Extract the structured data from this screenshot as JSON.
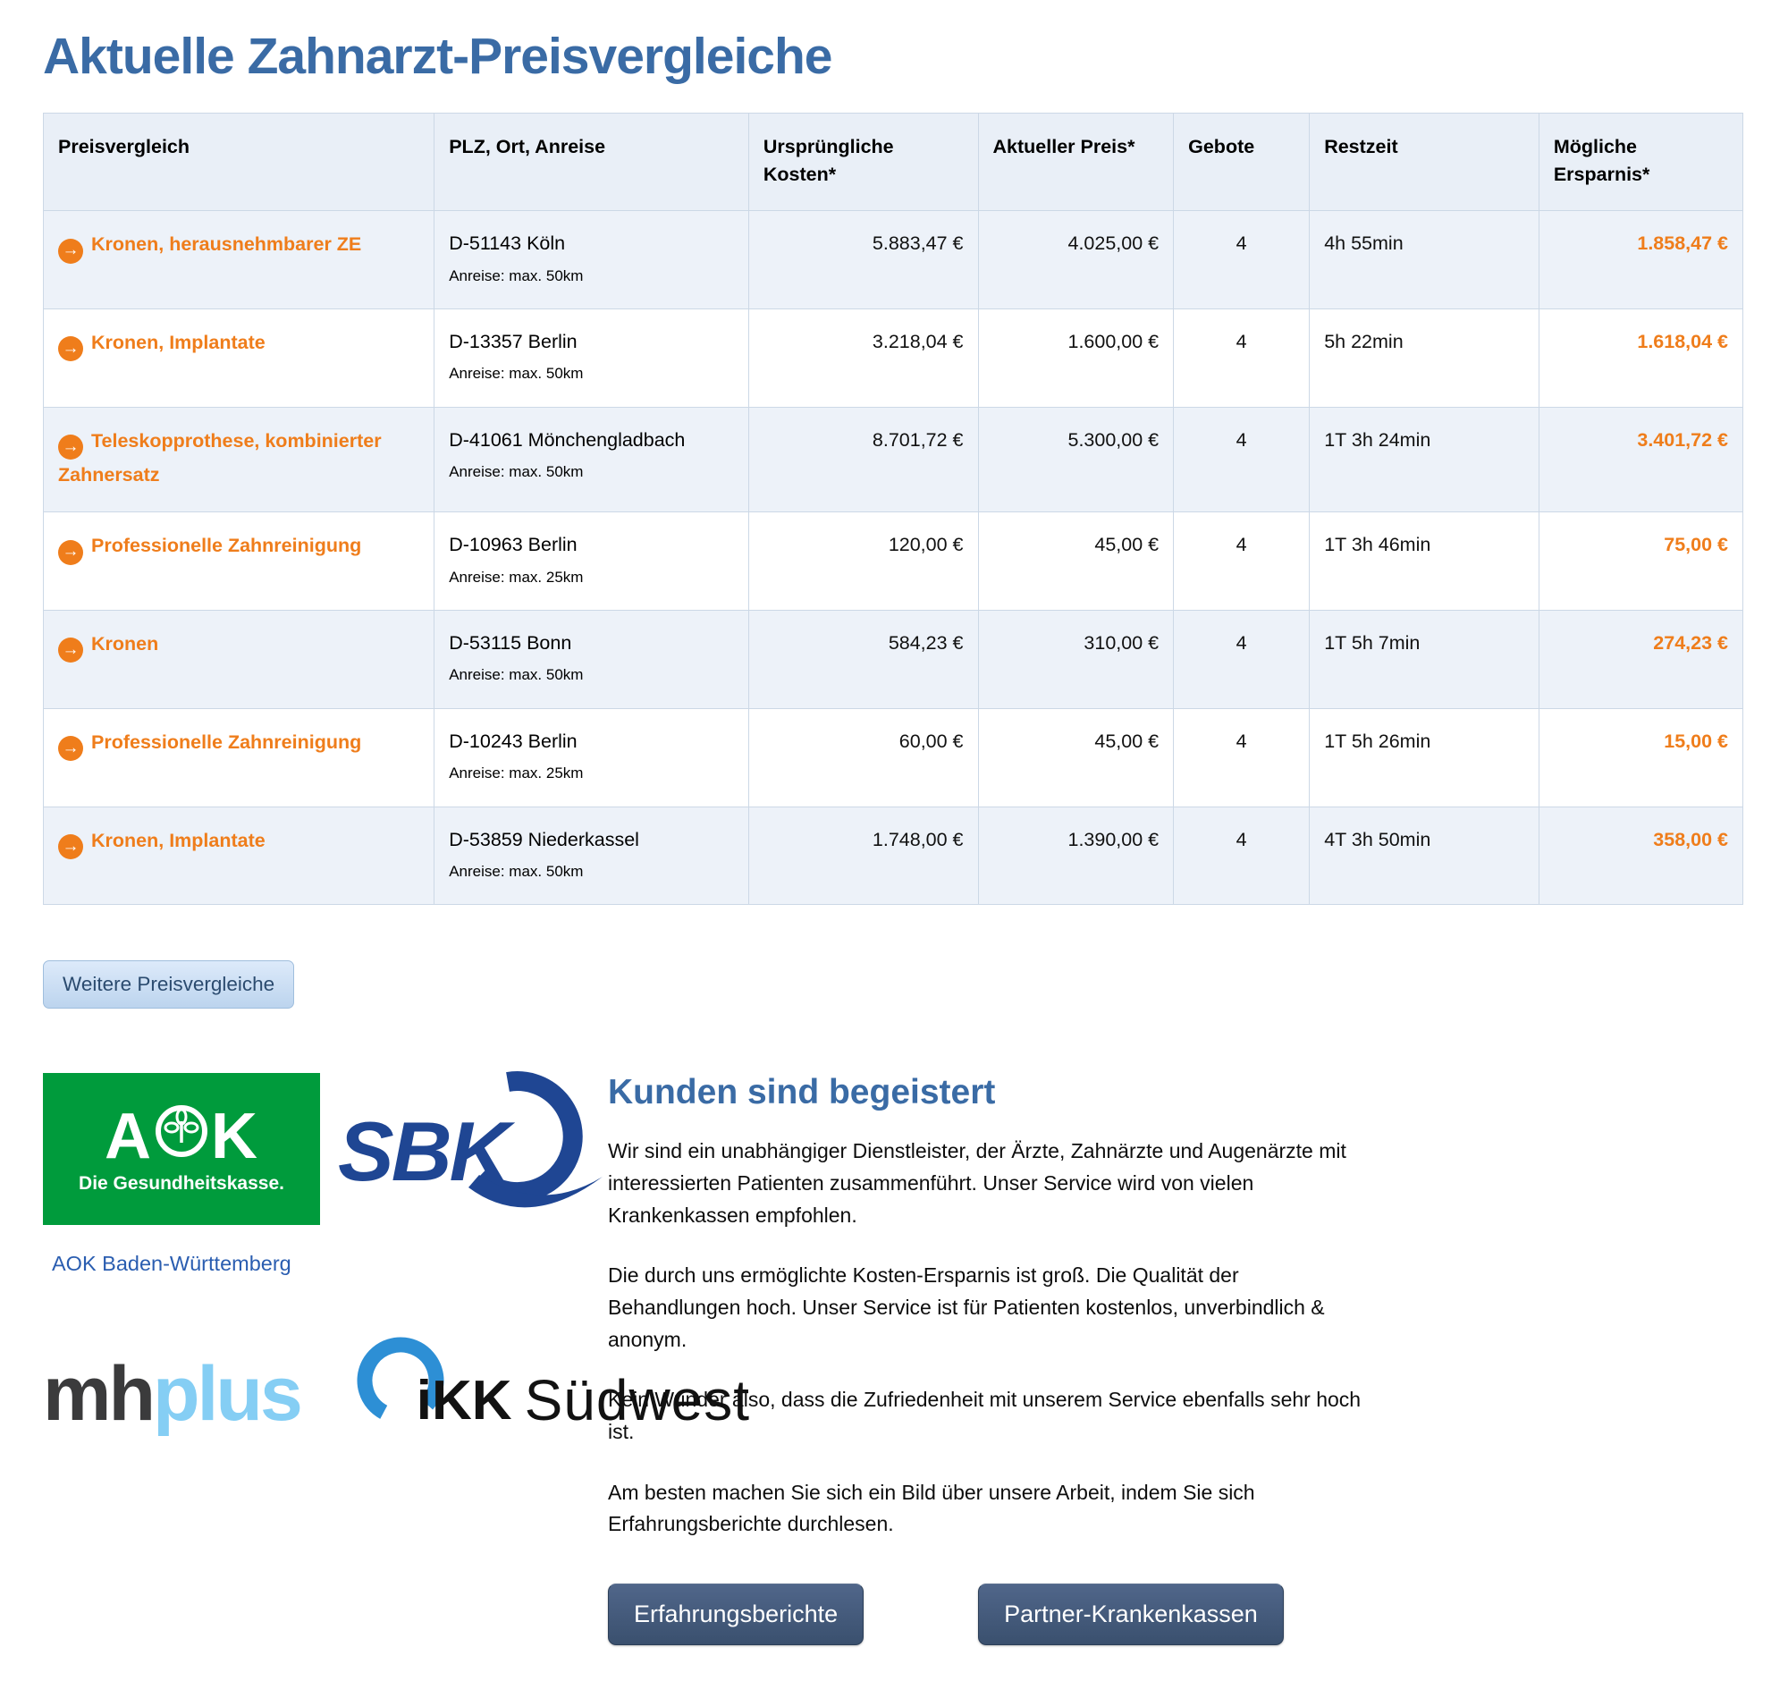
{
  "page": {
    "title": "Aktuelle Zahnarzt-Preisvergleiche"
  },
  "table": {
    "headers": [
      "Preisvergleich",
      "PLZ, Ort, Anreise",
      "Ursprüngliche Kosten*",
      "Aktueller Preis*",
      "Gebote",
      "Restzeit",
      "Mögliche Ersparnis*"
    ],
    "rows": [
      {
        "name": "Kronen, herausnehmbarer ZE",
        "location": "D-51143 Köln",
        "travel": "Anreise: max. 50km",
        "original": "5.883,47 €",
        "current": "4.025,00 €",
        "bids": "4",
        "remaining": "4h 55min",
        "savings": "1.858,47 €"
      },
      {
        "name": "Kronen, Implantate",
        "location": "D-13357 Berlin",
        "travel": "Anreise: max. 50km",
        "original": "3.218,04 €",
        "current": "1.600,00 €",
        "bids": "4",
        "remaining": "5h 22min",
        "savings": "1.618,04 €"
      },
      {
        "name": "Teleskopprothese, kombinierter Zahnersatz",
        "location": "D-41061 Mönchengladbach",
        "travel": "Anreise: max. 50km",
        "original": "8.701,72 €",
        "current": "5.300,00 €",
        "bids": "4",
        "remaining": "1T 3h 24min",
        "savings": "3.401,72 €"
      },
      {
        "name": "Professionelle Zahnreinigung",
        "location": "D-10963 Berlin",
        "travel": "Anreise: max. 25km",
        "original": "120,00 €",
        "current": "45,00 €",
        "bids": "4",
        "remaining": "1T 3h 46min",
        "savings": "75,00 €"
      },
      {
        "name": "Kronen",
        "location": "D-53115 Bonn",
        "travel": "Anreise: max. 50km",
        "original": "584,23 €",
        "current": "310,00 €",
        "bids": "4",
        "remaining": "1T 5h 7min",
        "savings": "274,23 €"
      },
      {
        "name": "Professionelle Zahnreinigung",
        "location": "D-10243 Berlin",
        "travel": "Anreise: max. 25km",
        "original": "60,00 €",
        "current": "45,00 €",
        "bids": "4",
        "remaining": "1T 5h 26min",
        "savings": "15,00 €"
      },
      {
        "name": "Kronen, Implantate",
        "location": "D-53859 Niederkassel",
        "travel": "Anreise: max. 50km",
        "original": "1.748,00 €",
        "current": "1.390,00 €",
        "bids": "4",
        "remaining": "4T 3h 50min",
        "savings": "358,00 €"
      }
    ],
    "arrow_icon": "→"
  },
  "more_button_label": "Weitere Preisvergleiche",
  "partners": {
    "aok": {
      "letter_a": "A",
      "letter_k": "K",
      "tagline": "Die Gesundheitskasse.",
      "link": "AOK Baden-Württemberg"
    },
    "sbk": {
      "brand": "SBK"
    },
    "mhplus": {
      "part_dark": "mh",
      "part_light": "plus"
    },
    "ikk": {
      "brand": "iKK",
      "region": "Südwest"
    }
  },
  "testimonials": {
    "heading": "Kunden sind begeistert",
    "paragraphs": [
      "Wir sind ein unabhängiger Dienstleister, der Ärzte, Zahnärzte und Augenärzte mit interessierten Patienten zusammenführt. Unser Service wird von vielen Krankenkassen empfohlen.",
      "Die durch uns ermöglichte Kosten-Ersparnis ist groß. Die Qualität der Behandlungen hoch. Unser Service ist für Patienten kostenlos, unverbindlich & anonym.",
      "Kein Wunder also, dass die Zufriedenheit mit unserem Service ebenfalls sehr hoch ist.",
      "Am besten machen Sie sich ein Bild über unsere Arbeit, indem Sie sich Erfahrungsberichte durchlesen."
    ],
    "buttons": {
      "reviews": "Erfahrungsberichte",
      "partners": "Partner-Krankenkassen"
    }
  },
  "colors": {
    "accent_blue": "#3a6ba5",
    "accent_orange": "#ef7d1b",
    "aok_green": "#009b3c",
    "sbk_navy": "#1f4693",
    "ikk_blue": "#2d8fd5",
    "mhplus_light_blue": "#85cef4",
    "dark_button": "#3a506e",
    "row_alt_bg": "#edf2f9",
    "header_bg": "#e9eff7"
  }
}
